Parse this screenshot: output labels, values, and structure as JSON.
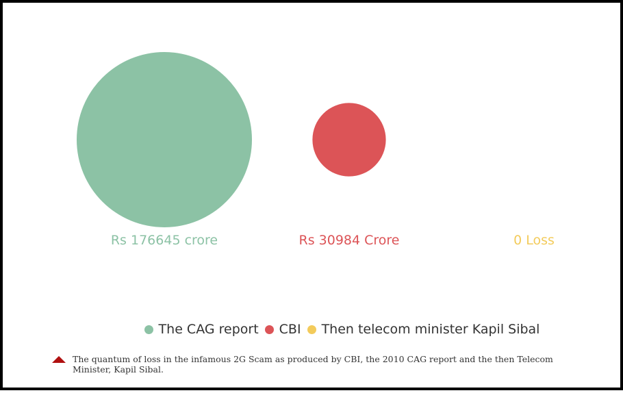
{
  "chart_data": {
    "type": "bubble",
    "series": [
      {
        "name": "The CAG report",
        "value": 176645,
        "label": "Rs 176645 crore",
        "color": "#8cc2a5"
      },
      {
        "name": "CBI",
        "value": 30984,
        "label": "Rs 30984 Crore",
        "color": "#dc5457"
      },
      {
        "name": "Then telecom minister Kapil Sibal",
        "value": 0,
        "label": "0 Loss",
        "color": "#f3cb5b"
      }
    ],
    "legend_position": "bottom-center"
  },
  "caption": {
    "text": "The quantum of loss in the infamous 2G Scam as produced by CBI, the 2010 CAG report and the then Telecom Minister, Kapil Sibal."
  },
  "icons": {
    "caption_marker": "triangle-up-icon",
    "caption_marker_color": "#b01010"
  }
}
